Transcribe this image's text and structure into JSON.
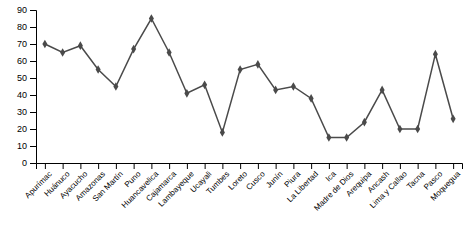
{
  "chart_data": {
    "type": "line",
    "categories": [
      "Apurímac",
      "Huánuco",
      "Ayacucho",
      "Amazonas",
      "San Martín",
      "Puno",
      "Huancavelica",
      "Cajamarca",
      "Lambayeque",
      "Ucayali",
      "Tumbes",
      "Loreto",
      "Cusco",
      "Junín",
      "Piura",
      "La Libertad",
      "Ica",
      "Madre de Dios",
      "Arequipa",
      "Ancash",
      "Lima y Callao",
      "Tacna",
      "Pasco",
      "Moquegua"
    ],
    "values": [
      70,
      65,
      69,
      55,
      45,
      67,
      85,
      65,
      41,
      46,
      18,
      55,
      58,
      43,
      45,
      38,
      15,
      15,
      24,
      43,
      20,
      20,
      64,
      26
    ],
    "color": "#4a4a4a",
    "marker": "diamond",
    "ylim": [
      0,
      90
    ],
    "yticks": [
      0,
      10,
      20,
      30,
      40,
      50,
      60,
      70,
      80,
      90
    ]
  }
}
